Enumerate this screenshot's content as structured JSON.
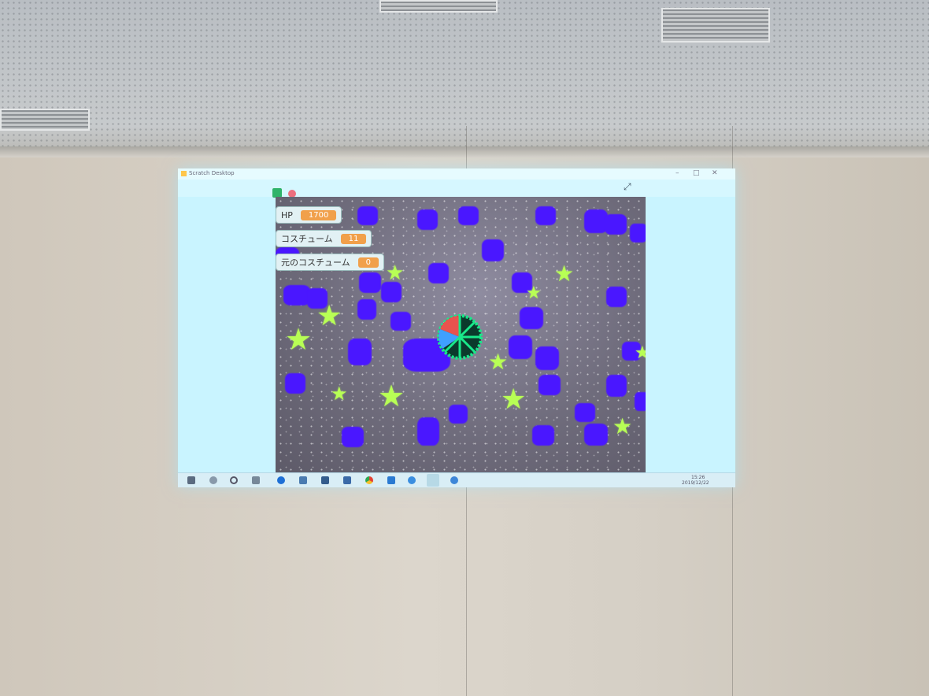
{
  "window": {
    "title": "Scratch Desktop",
    "controls": [
      "–",
      "□",
      "✕"
    ]
  },
  "toolbar": {
    "green_flag_icon": "green-flag-icon",
    "stop_icon": "stop-icon",
    "fullscreen_icon": "fullscreen-icon"
  },
  "monitors": [
    {
      "label": "HP",
      "value": "1700"
    },
    {
      "label": "コスチューム",
      "value": "11"
    },
    {
      "label": "元のコスチューム",
      "value": "0"
    }
  ],
  "taskbar": {
    "time": "15:26",
    "date": "2019/12/22",
    "icons": [
      "start-icon",
      "search-icon",
      "cortana-icon",
      "task-view-icon",
      "edge-icon",
      "photos-icon",
      "store-icon",
      "mail-icon",
      "chrome-icon",
      "vscode-icon",
      "app-icon",
      "scratch-icon",
      "browser-icon"
    ]
  },
  "colors": {
    "screen": "#c9f4ff",
    "blob": "#4a17ff",
    "star": "#b8ff55",
    "monitor_value": "#f1a04b"
  }
}
